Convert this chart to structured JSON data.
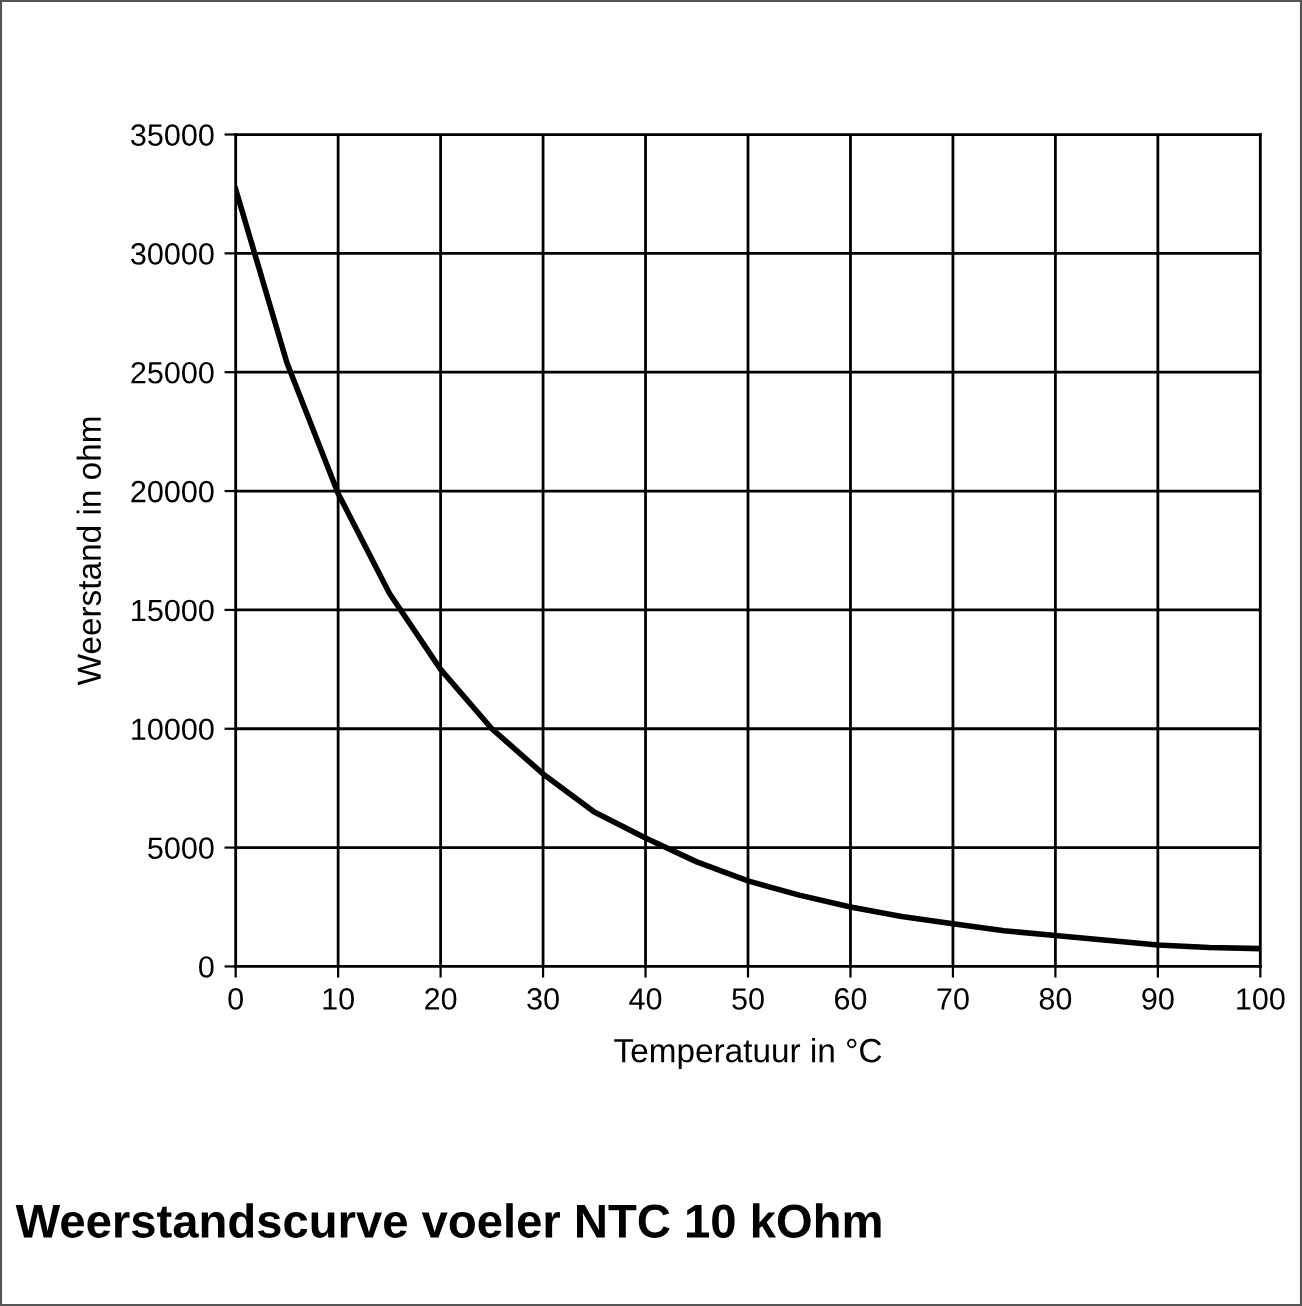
{
  "chart_data": {
    "type": "line",
    "title": "Weerstandscurve voeler NTC 10 kOhm",
    "xlabel": "Temperatuur in °C",
    "ylabel": "Weerstand in ohm",
    "x": [
      0,
      5,
      10,
      15,
      20,
      25,
      30,
      35,
      40,
      45,
      50,
      55,
      60,
      65,
      70,
      75,
      80,
      85,
      90,
      95,
      100
    ],
    "series": [
      {
        "color": "#000000",
        "values": [
          32700,
          25400,
          19900,
          15700,
          12500,
          10000,
          8100,
          6500,
          5400,
          4400,
          3600,
          3000,
          2500,
          2100,
          1800,
          1500,
          1300,
          1100,
          900,
          800,
          750
        ]
      }
    ],
    "xlim": [
      0,
      100
    ],
    "xticks": [
      0,
      10,
      20,
      30,
      40,
      50,
      60,
      70,
      80,
      90,
      100
    ],
    "ylim": [
      0,
      35000
    ],
    "yticks": [
      0,
      5000,
      10000,
      15000,
      20000,
      25000,
      30000,
      35000
    ],
    "grid": true,
    "marker": "none",
    "line_style": "solid",
    "legend": false
  }
}
